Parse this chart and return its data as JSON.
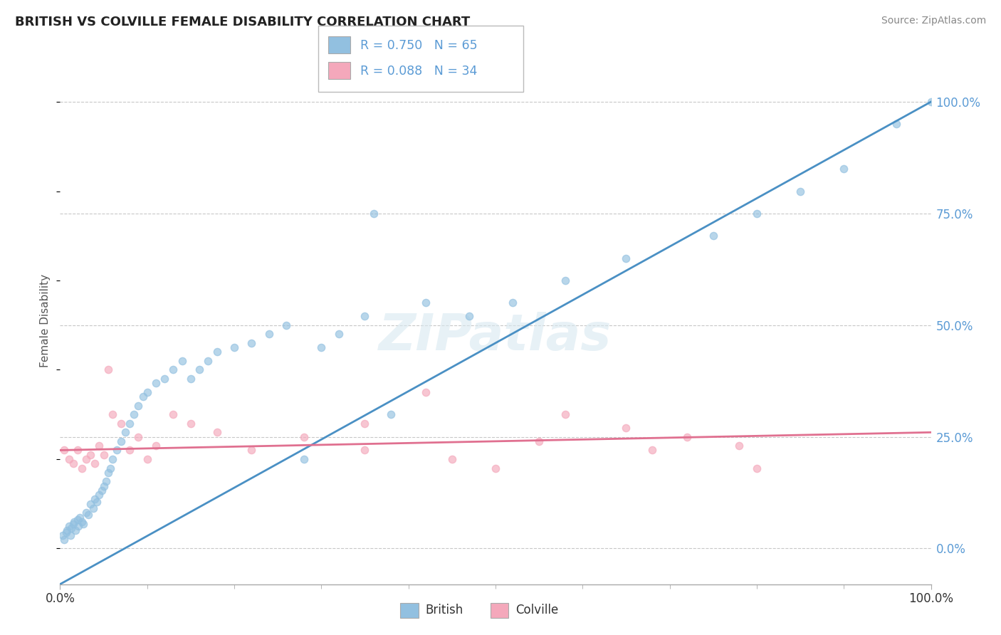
{
  "title": "BRITISH VS COLVILLE FEMALE DISABILITY CORRELATION CHART",
  "source": "Source: ZipAtlas.com",
  "ylabel": "Female Disability",
  "legend_british": "British",
  "legend_colville": "Colville",
  "r_british": 0.75,
  "n_british": 65,
  "r_colville": 0.088,
  "n_colville": 34,
  "british_color": "#92c0e0",
  "colville_color": "#f4a8bb",
  "british_line_color": "#4a90c4",
  "colville_line_color": "#e07090",
  "background_color": "#ffffff",
  "grid_color": "#c8c8c8",
  "watermark_color": "#d8e8f0",
  "watermark": "ZIPatlas",
  "tick_color": "#5b9bd5",
  "title_color": "#222222",
  "source_color": "#888888",
  "ylabel_color": "#555555",
  "xmin": 0.0,
  "xmax": 100.0,
  "ymin": -8.0,
  "ymax": 110.0,
  "yticks": [
    0.0,
    25.0,
    50.0,
    75.0,
    100.0
  ],
  "ytick_labels": [
    "0.0%",
    "25.0%",
    "50.0%",
    "75.0%",
    "100.0%"
  ],
  "xtick_left": "0.0%",
  "xtick_right": "100.0%",
  "brit_intercept": -8.0,
  "brit_slope": 1.08,
  "colv_intercept": 22.0,
  "colv_slope": 0.04,
  "brit_points_x": [
    0.3,
    0.5,
    0.7,
    0.8,
    1.0,
    1.2,
    1.3,
    1.5,
    1.6,
    1.8,
    2.0,
    2.1,
    2.3,
    2.5,
    2.7,
    3.0,
    3.2,
    3.5,
    3.8,
    4.0,
    4.2,
    4.5,
    4.8,
    5.0,
    5.3,
    5.5,
    5.8,
    6.0,
    6.5,
    7.0,
    7.5,
    8.0,
    8.5,
    9.0,
    9.5,
    10.0,
    11.0,
    12.0,
    13.0,
    14.0,
    15.0,
    16.0,
    17.0,
    18.0,
    20.0,
    22.0,
    24.0,
    26.0,
    28.0,
    30.0,
    32.0,
    35.0,
    38.0,
    42.0,
    36.0,
    47.0,
    52.0,
    58.0,
    65.0,
    75.0,
    80.0,
    85.0,
    90.0,
    96.0,
    100.0
  ],
  "brit_points_y": [
    3.0,
    2.0,
    3.5,
    4.0,
    5.0,
    3.0,
    4.5,
    5.5,
    6.0,
    4.0,
    6.5,
    5.0,
    7.0,
    6.0,
    5.5,
    8.0,
    7.5,
    10.0,
    9.0,
    11.0,
    10.5,
    12.0,
    13.0,
    14.0,
    15.0,
    17.0,
    18.0,
    20.0,
    22.0,
    24.0,
    26.0,
    28.0,
    30.0,
    32.0,
    34.0,
    35.0,
    37.0,
    38.0,
    40.0,
    42.0,
    38.0,
    40.0,
    42.0,
    44.0,
    45.0,
    46.0,
    48.0,
    50.0,
    20.0,
    45.0,
    48.0,
    52.0,
    30.0,
    55.0,
    75.0,
    52.0,
    55.0,
    60.0,
    65.0,
    70.0,
    75.0,
    80.0,
    85.0,
    95.0,
    100.0
  ],
  "colv_points_x": [
    0.5,
    1.0,
    1.5,
    2.0,
    2.5,
    3.0,
    3.5,
    4.0,
    4.5,
    5.0,
    5.5,
    6.0,
    7.0,
    8.0,
    9.0,
    10.0,
    11.0,
    13.0,
    15.0,
    18.0,
    22.0,
    28.0,
    35.0,
    42.0,
    50.0,
    58.0,
    65.0,
    72.0,
    80.0,
    35.0,
    45.0,
    55.0,
    68.0,
    78.0
  ],
  "colv_points_y": [
    22.0,
    20.0,
    19.0,
    22.0,
    18.0,
    20.0,
    21.0,
    19.0,
    23.0,
    21.0,
    40.0,
    30.0,
    28.0,
    22.0,
    25.0,
    20.0,
    23.0,
    30.0,
    28.0,
    26.0,
    22.0,
    25.0,
    28.0,
    35.0,
    18.0,
    30.0,
    27.0,
    25.0,
    18.0,
    22.0,
    20.0,
    24.0,
    22.0,
    23.0
  ]
}
